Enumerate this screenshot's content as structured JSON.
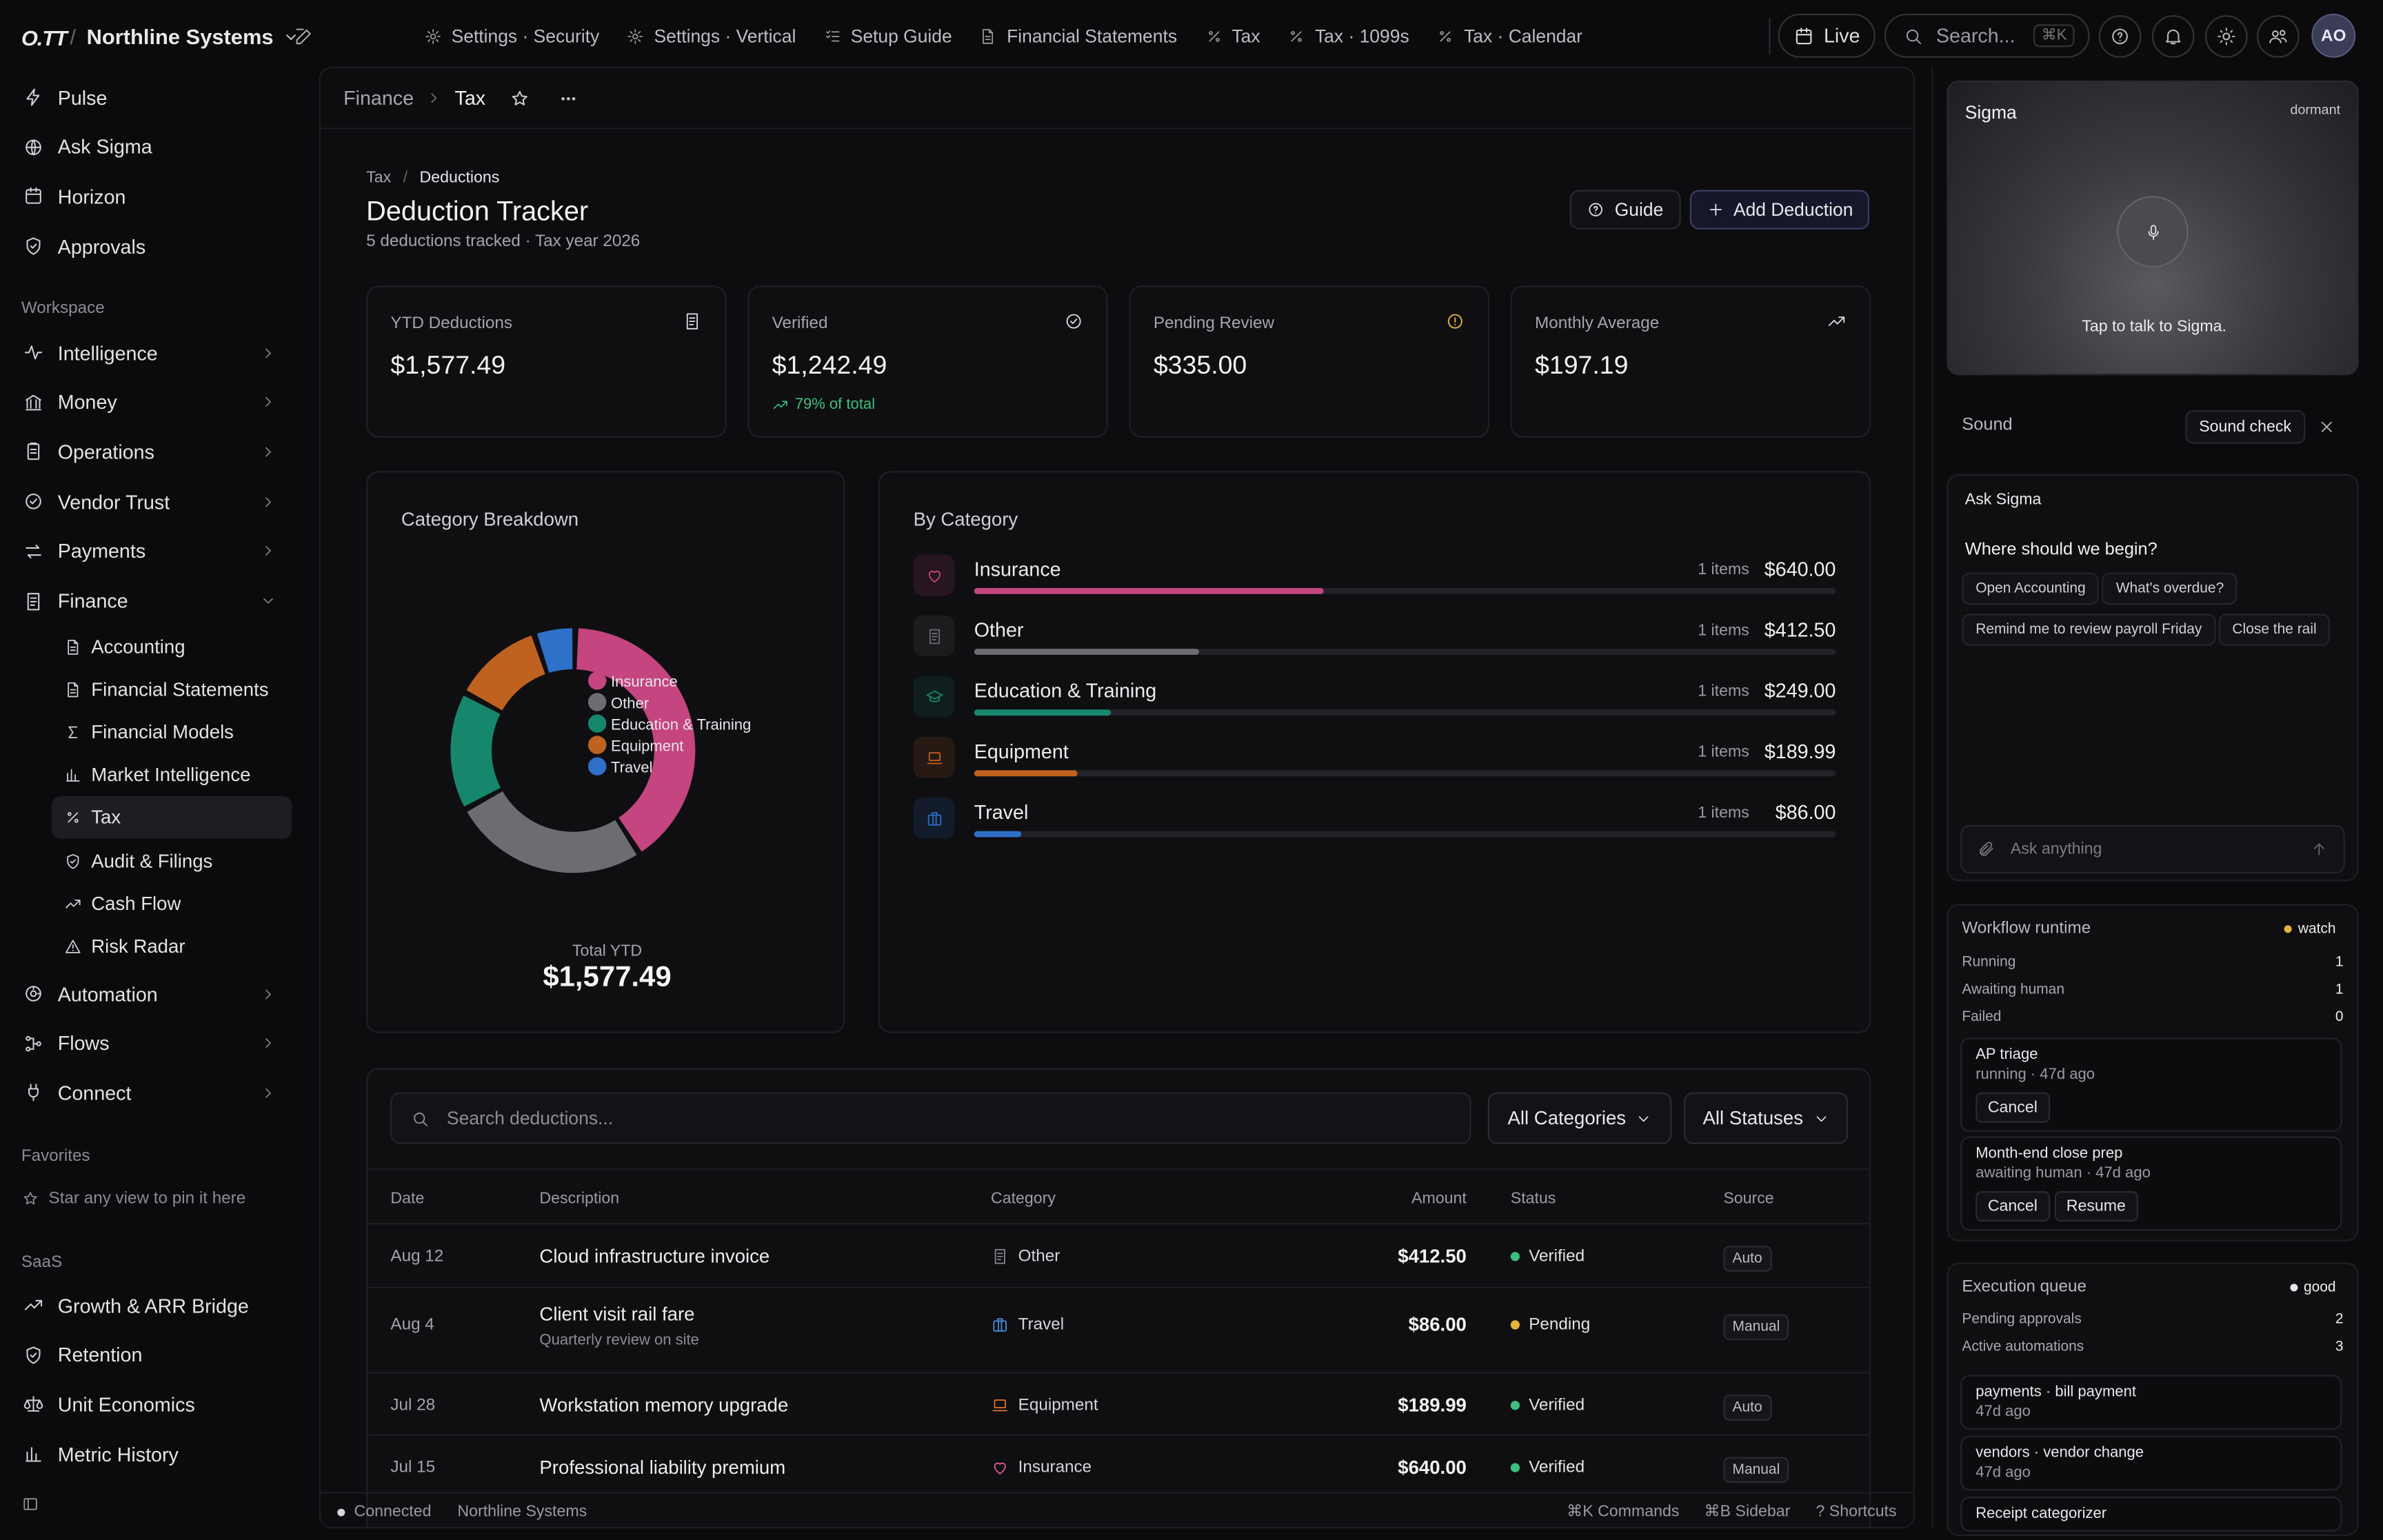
{
  "app": {
    "logo": "O.TT",
    "org": "Northline Systems",
    "avatar": "AO"
  },
  "topbar": {
    "tabs": [
      {
        "label": "Settings · Security",
        "icon": "gear-icon"
      },
      {
        "label": "Settings · Vertical",
        "icon": "gear-icon"
      },
      {
        "label": "Setup Guide",
        "icon": "checklist-icon"
      },
      {
        "label": "Financial Statements",
        "icon": "document-icon"
      },
      {
        "label": "Tax",
        "icon": "percent-icon"
      },
      {
        "label": "Tax · 1099s",
        "icon": "percent-icon"
      },
      {
        "label": "Tax · Calendar",
        "icon": "percent-icon"
      }
    ],
    "live_label": "Live",
    "search_placeholder": "Search...",
    "search_shortcut": "⌘K"
  },
  "sidebar": {
    "top_items": [
      {
        "label": "Pulse",
        "icon": "bolt-icon"
      },
      {
        "label": "Ask Sigma",
        "icon": "globe-icon"
      },
      {
        "label": "Horizon",
        "icon": "calendar-icon"
      },
      {
        "label": "Approvals",
        "icon": "shield-icon"
      }
    ],
    "workspace_label": "Workspace",
    "workspace_items": [
      {
        "label": "Intelligence",
        "icon": "activity-icon"
      },
      {
        "label": "Money",
        "icon": "bank-icon"
      },
      {
        "label": "Operations",
        "icon": "clipboard-icon"
      },
      {
        "label": "Vendor Trust",
        "icon": "check-circle-icon"
      },
      {
        "label": "Payments",
        "icon": "transfer-icon"
      },
      {
        "label": "Finance",
        "icon": "receipt-icon"
      }
    ],
    "finance_sub": [
      {
        "label": "Accounting",
        "icon": "document-icon"
      },
      {
        "label": "Financial Statements",
        "icon": "document-icon"
      },
      {
        "label": "Financial Models",
        "icon": "sigma-icon"
      },
      {
        "label": "Market Intelligence",
        "icon": "bar-chart-icon"
      },
      {
        "label": "Tax",
        "icon": "percent-icon"
      },
      {
        "label": "Audit & Filings",
        "icon": "shield-icon"
      },
      {
        "label": "Cash Flow",
        "icon": "trend-up-icon"
      },
      {
        "label": "Risk Radar",
        "icon": "warning-icon"
      }
    ],
    "more_items": [
      {
        "label": "Automation",
        "icon": "target-icon"
      },
      {
        "label": "Flows",
        "icon": "flow-icon"
      },
      {
        "label": "Connect",
        "icon": "plug-icon"
      }
    ],
    "favorites_label": "Favorites",
    "favorites_empty": "Star any view to pin it here",
    "saas_label": "SaaS",
    "saas_items": [
      {
        "label": "Growth & ARR Bridge",
        "icon": "trend-up-icon"
      },
      {
        "label": "Retention",
        "icon": "shield-icon"
      },
      {
        "label": "Unit Economics",
        "icon": "scale-icon"
      },
      {
        "label": "Metric History",
        "icon": "bar-chart-icon"
      }
    ]
  },
  "main": {
    "breadcrumb": {
      "parent": "Finance",
      "current": "Tax"
    },
    "subcrumb": {
      "parent": "Tax",
      "current": "Deductions"
    },
    "title": "Deduction Tracker",
    "subtitle": "5 deductions tracked · Tax year 2026",
    "guide_label": "Guide",
    "add_label": "Add Deduction",
    "kpis": [
      {
        "label": "YTD Deductions",
        "value": "$1,577.49",
        "icon": "receipt-icon"
      },
      {
        "label": "Verified",
        "value": "$1,242.49",
        "icon": "check-circle-icon",
        "note": "79% of total"
      },
      {
        "label": "Pending Review",
        "value": "$335.00",
        "icon": "alert-circle-icon"
      },
      {
        "label": "Monthly Average",
        "value": "$197.19",
        "icon": "trend-up-icon"
      }
    ],
    "breakdown_title": "Category Breakdown",
    "total_label": "Total YTD",
    "total_value": "$1,577.49",
    "bycat_title": "By Category",
    "search_placeholder": "Search deductions...",
    "filter_category": "All Categories",
    "filter_status": "All Statuses",
    "columns": [
      "Date",
      "Description",
      "Category",
      "Amount",
      "Status",
      "Source"
    ],
    "rows": [
      {
        "date": "Aug 12",
        "desc": "Cloud infrastructure invoice",
        "note": "",
        "cat": "Other",
        "icon": "receipt-icon",
        "color": "#8a8a90",
        "amount": "$412.50",
        "status": "Verified",
        "status_color": "#3fbf7f",
        "source": "Auto"
      },
      {
        "date": "Aug 4",
        "desc": "Client visit rail fare",
        "note": "Quarterly review on site",
        "cat": "Travel",
        "icon": "briefcase-icon",
        "color": "#4a90e2",
        "amount": "$86.00",
        "status": "Pending",
        "status_color": "#e6b43c",
        "source": "Manual"
      },
      {
        "date": "Jul 28",
        "desc": "Workstation memory upgrade",
        "note": "",
        "cat": "Equipment",
        "icon": "laptop-icon",
        "color": "#e0752a",
        "amount": "$189.99",
        "status": "Verified",
        "status_color": "#3fbf7f",
        "source": "Auto"
      },
      {
        "date": "Jul 15",
        "desc": "Professional liability premium",
        "note": "",
        "cat": "Insurance",
        "icon": "heart-icon",
        "color": "#e05a8c",
        "amount": "$640.00",
        "status": "Verified",
        "status_color": "#3fbf7f",
        "source": "Manual"
      }
    ]
  },
  "chart_data": {
    "type": "pie",
    "title": "Category Breakdown",
    "categories": [
      "Insurance",
      "Other",
      "Education & Training",
      "Equipment",
      "Travel"
    ],
    "values": [
      640.0,
      412.5,
      249.0,
      189.99,
      86.0
    ],
    "counts": [
      "1 items",
      "1 items",
      "1 items",
      "1 items",
      "1 items"
    ],
    "amounts": [
      "$640.00",
      "$412.50",
      "$249.00",
      "$189.99",
      "$86.00"
    ],
    "colors": [
      "#c4457f",
      "#6b6d73",
      "#16876d",
      "#c0621f",
      "#2f70c8"
    ],
    "icons": [
      "heart-icon",
      "receipt-icon",
      "graduation-cap-icon",
      "laptop-icon",
      "briefcase-icon"
    ],
    "legend": "right"
  },
  "right": {
    "sigma_title": "Sigma",
    "sigma_state": "dormant",
    "sigma_hint": "Tap to talk to Sigma.",
    "sound_label": "Sound",
    "sound_check": "Sound check",
    "ask_title": "Ask Sigma",
    "ask_question": "Where should we begin?",
    "chips": [
      "Open Accounting",
      "What's overdue?",
      "Remind me to review payroll Friday",
      "Close the rail"
    ],
    "ask_placeholder": "Ask anything",
    "workflow": {
      "title": "Workflow runtime",
      "badge": "watch",
      "rows": [
        {
          "k": "Running",
          "v": "1"
        },
        {
          "k": "Awaiting human",
          "v": "1"
        },
        {
          "k": "Failed",
          "v": "0"
        }
      ],
      "jobs": [
        {
          "title": "AP triage",
          "status": "running · 47d ago",
          "buttons": [
            "Cancel"
          ]
        },
        {
          "title": "Month-end close prep",
          "status": "awaiting human · 47d ago",
          "buttons": [
            "Cancel",
            "Resume"
          ]
        }
      ]
    },
    "queue": {
      "title": "Execution queue",
      "badge": "good",
      "rows": [
        {
          "k": "Pending approvals",
          "v": "2"
        },
        {
          "k": "Active automations",
          "v": "3"
        }
      ],
      "items": [
        {
          "title": "payments · bill payment",
          "time": "47d ago"
        },
        {
          "title": "vendors · vendor change",
          "time": "47d ago"
        },
        {
          "title": "Receipt categorizer",
          "time": ""
        }
      ]
    }
  },
  "footer": {
    "status": "Connected",
    "org": "Northline Systems",
    "commands": "⌘K Commands",
    "sidebar": "⌘B Sidebar",
    "shortcuts": "? Shortcuts"
  }
}
